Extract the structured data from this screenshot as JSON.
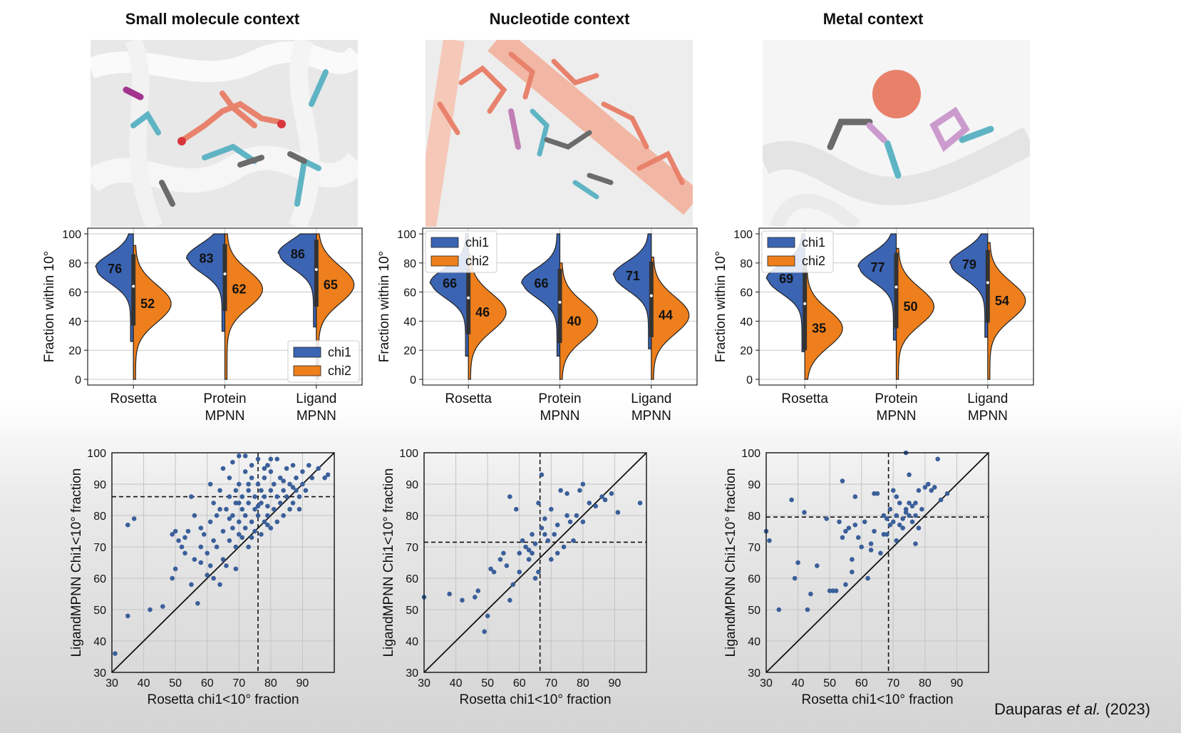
{
  "titles": [
    "Small molecule context",
    "Nucleotide context",
    "Metal context"
  ],
  "citation": {
    "author": "Dauparas ",
    "etal": "et al.",
    "year": " (2023)"
  },
  "colors": {
    "chi1": "#3b64b3",
    "chi2": "#ee7f1c",
    "scatter": "#3a5f9a"
  },
  "chart_data": [
    {
      "type": "violin",
      "context": "Small molecule context",
      "ylabel": "Fraction within 10°",
      "ylim": [
        0,
        100
      ],
      "yticks": [
        0,
        20,
        40,
        60,
        80,
        100
      ],
      "categories": [
        "Rosetta",
        "Protein\nMPNN",
        "Ligand\nMPNN"
      ],
      "series": [
        {
          "name": "chi1",
          "values": [
            76,
            83,
            86
          ]
        },
        {
          "name": "chi2",
          "values": [
            52,
            62,
            65
          ]
        }
      ],
      "legend": [
        "chi1",
        "chi2"
      ],
      "legend_position": "lower-right"
    },
    {
      "type": "violin",
      "context": "Nucleotide context",
      "ylabel": "Fraction within 10°",
      "ylim": [
        0,
        100
      ],
      "yticks": [
        0,
        20,
        40,
        60,
        80,
        100
      ],
      "categories": [
        "Rosetta",
        "Protein\nMPNN",
        "Ligand\nMPNN"
      ],
      "series": [
        {
          "name": "chi1",
          "values": [
            66,
            66,
            71
          ]
        },
        {
          "name": "chi2",
          "values": [
            46,
            40,
            44
          ]
        }
      ],
      "legend": [
        "chi1",
        "chi2"
      ],
      "legend_position": "upper-left"
    },
    {
      "type": "violin",
      "context": "Metal context",
      "ylabel": "Fraction within 10°",
      "ylim": [
        0,
        100
      ],
      "yticks": [
        0,
        20,
        40,
        60,
        80,
        100
      ],
      "categories": [
        "Rosetta",
        "Protein\nMPNN",
        "Ligand\nMPNN"
      ],
      "series": [
        {
          "name": "chi1",
          "values": [
            69,
            77,
            79
          ]
        },
        {
          "name": "chi2",
          "values": [
            35,
            50,
            54
          ]
        }
      ],
      "legend": [
        "chi1",
        "chi2"
      ],
      "legend_position": "upper-left"
    },
    {
      "type": "scatter",
      "context": "Small molecule context",
      "xlabel": "Rosetta chi1<10° fraction",
      "ylabel": "LigandMPNN Chi1<10° fraction",
      "xlim": [
        30,
        100
      ],
      "ylim": [
        30,
        100
      ],
      "xticks": [
        30,
        40,
        50,
        60,
        70,
        80,
        90
      ],
      "yticks": [
        30,
        40,
        50,
        60,
        70,
        80,
        90,
        100
      ],
      "hline": 86,
      "vline": 76,
      "points": [
        [
          31,
          36
        ],
        [
          35,
          48
        ],
        [
          35,
          77
        ],
        [
          37,
          79
        ],
        [
          42,
          50
        ],
        [
          46,
          51
        ],
        [
          49,
          74
        ],
        [
          49,
          60
        ],
        [
          50,
          75
        ],
        [
          50,
          63
        ],
        [
          51,
          72
        ],
        [
          52,
          70
        ],
        [
          53,
          68
        ],
        [
          54,
          75
        ],
        [
          55,
          58
        ],
        [
          55,
          86
        ],
        [
          56,
          80
        ],
        [
          57,
          52
        ],
        [
          58,
          65
        ],
        [
          58,
          70
        ],
        [
          59,
          74
        ],
        [
          60,
          61
        ],
        [
          60,
          68
        ],
        [
          61,
          90
        ],
        [
          61,
          78
        ],
        [
          62,
          60
        ],
        [
          62,
          72
        ],
        [
          62,
          84
        ],
        [
          63,
          70
        ],
        [
          63,
          80
        ],
        [
          64,
          58
        ],
        [
          64,
          88
        ],
        [
          65,
          66
        ],
        [
          65,
          75
        ],
        [
          65,
          95
        ],
        [
          66,
          82
        ],
        [
          67,
          72
        ],
        [
          67,
          86
        ],
        [
          67,
          92
        ],
        [
          68,
          76
        ],
        [
          68,
          80
        ],
        [
          68,
          97
        ],
        [
          69,
          70
        ],
        [
          69,
          84
        ],
        [
          69,
          88
        ],
        [
          70,
          74
        ],
        [
          70,
          78
        ],
        [
          70,
          90
        ],
        [
          70,
          99
        ],
        [
          71,
          82
        ],
        [
          71,
          86
        ],
        [
          72,
          76
        ],
        [
          72,
          80
        ],
        [
          72,
          94
        ],
        [
          73,
          70
        ],
        [
          73,
          88
        ],
        [
          73,
          84
        ],
        [
          74,
          78
        ],
        [
          74,
          92
        ],
        [
          74,
          96
        ],
        [
          75,
          75
        ],
        [
          75,
          86
        ],
        [
          75,
          82
        ],
        [
          76,
          80
        ],
        [
          76,
          90
        ],
        [
          76,
          98
        ],
        [
          77,
          74
        ],
        [
          77,
          84
        ],
        [
          77,
          88
        ],
        [
          78,
          78
        ],
        [
          78,
          86
        ],
        [
          78,
          92
        ],
        [
          79,
          80
        ],
        [
          79,
          96
        ],
        [
          79,
          83
        ],
        [
          80,
          76
        ],
        [
          80,
          88
        ],
        [
          80,
          94
        ],
        [
          81,
          82
        ],
        [
          81,
          90
        ],
        [
          82,
          78
        ],
        [
          82,
          86
        ],
        [
          82,
          98
        ],
        [
          83,
          84
        ],
        [
          83,
          92
        ],
        [
          84,
          80
        ],
        [
          84,
          88
        ],
        [
          85,
          86
        ],
        [
          85,
          95
        ],
        [
          86,
          82
        ],
        [
          86,
          90
        ],
        [
          87,
          84
        ],
        [
          87,
          96
        ],
        [
          88,
          88
        ],
        [
          88,
          92
        ],
        [
          89,
          86
        ],
        [
          89,
          82
        ],
        [
          90,
          90
        ],
        [
          90,
          94
        ],
        [
          91,
          88
        ],
        [
          92,
          96
        ],
        [
          93,
          92
        ],
        [
          95,
          95
        ],
        [
          97,
          92
        ],
        [
          98,
          93
        ],
        [
          66,
          64
        ],
        [
          69,
          63
        ],
        [
          71,
          73
        ],
        [
          74,
          73
        ],
        [
          76,
          83
        ],
        [
          79,
          77
        ],
        [
          84,
          91
        ],
        [
          87,
          89
        ],
        [
          73,
          90
        ],
        [
          67,
          79
        ],
        [
          80,
          98
        ],
        [
          78,
          95
        ],
        [
          72,
          99
        ],
        [
          70,
          84
        ],
        [
          64,
          82
        ],
        [
          58,
          76
        ],
        [
          53,
          73
        ],
        [
          56,
          66
        ],
        [
          61,
          64
        ]
      ]
    },
    {
      "type": "scatter",
      "context": "Nucleotide context",
      "xlabel": "Rosetta chi1<10° fraction",
      "ylabel": "LigandMPNN Chi1<10° fraction",
      "xlim": [
        30,
        100
      ],
      "ylim": [
        30,
        100
      ],
      "xticks": [
        30,
        40,
        50,
        60,
        70,
        80,
        90
      ],
      "yticks": [
        30,
        40,
        50,
        60,
        70,
        80,
        90,
        100
      ],
      "hline": 71.5,
      "vline": 66.5,
      "points": [
        [
          30,
          54
        ],
        [
          38,
          55
        ],
        [
          42,
          53
        ],
        [
          46,
          54
        ],
        [
          47,
          56
        ],
        [
          49,
          43
        ],
        [
          50,
          48
        ],
        [
          51,
          63
        ],
        [
          52,
          62
        ],
        [
          54,
          66
        ],
        [
          55,
          68
        ],
        [
          56,
          64
        ],
        [
          57,
          53
        ],
        [
          57,
          86
        ],
        [
          58,
          58
        ],
        [
          59,
          82
        ],
        [
          60,
          62
        ],
        [
          60,
          68
        ],
        [
          61,
          72
        ],
        [
          62,
          70
        ],
        [
          63,
          66
        ],
        [
          63,
          69
        ],
        [
          64,
          68
        ],
        [
          64,
          74
        ],
        [
          65,
          71
        ],
        [
          65,
          60
        ],
        [
          66,
          62
        ],
        [
          66,
          84
        ],
        [
          67,
          93
        ],
        [
          68,
          74
        ],
        [
          68,
          79
        ],
        [
          69,
          72
        ],
        [
          70,
          66
        ],
        [
          70,
          82
        ],
        [
          71,
          74
        ],
        [
          72,
          68
        ],
        [
          73,
          88
        ],
        [
          74,
          70
        ],
        [
          75,
          87
        ],
        [
          76,
          78
        ],
        [
          77,
          72
        ],
        [
          78,
          80
        ],
        [
          79,
          88
        ],
        [
          80,
          90
        ],
        [
          80,
          78
        ],
        [
          82,
          84
        ],
        [
          84,
          83
        ],
        [
          86,
          86
        ],
        [
          87,
          85
        ],
        [
          89,
          87
        ],
        [
          91,
          81
        ],
        [
          98,
          84
        ],
        [
          72,
          77
        ],
        [
          75,
          80
        ],
        [
          67,
          76
        ]
      ]
    },
    {
      "type": "scatter",
      "context": "Metal context",
      "xlabel": "Rosetta chi1<10° fraction",
      "ylabel": "LigandMPNN Chi1<10° fraction",
      "xlim": [
        30,
        100
      ],
      "ylim": [
        30,
        100
      ],
      "xticks": [
        30,
        40,
        50,
        60,
        70,
        80,
        90
      ],
      "yticks": [
        30,
        40,
        50,
        60,
        70,
        80,
        90,
        100
      ],
      "hline": 79.5,
      "vline": 68.5,
      "points": [
        [
          30,
          75
        ],
        [
          31,
          72
        ],
        [
          34,
          50
        ],
        [
          38,
          85
        ],
        [
          39,
          60
        ],
        [
          40,
          65
        ],
        [
          42,
          81
        ],
        [
          43,
          50
        ],
        [
          44,
          55
        ],
        [
          46,
          64
        ],
        [
          49,
          79
        ],
        [
          50,
          56
        ],
        [
          51,
          56
        ],
        [
          52,
          56
        ],
        [
          53,
          78
        ],
        [
          54,
          73
        ],
        [
          54,
          91
        ],
        [
          55,
          58
        ],
        [
          55,
          75
        ],
        [
          56,
          76
        ],
        [
          57,
          66
        ],
        [
          58,
          77
        ],
        [
          58,
          86
        ],
        [
          59,
          73
        ],
        [
          60,
          70
        ],
        [
          61,
          78
        ],
        [
          62,
          60
        ],
        [
          63,
          69
        ],
        [
          64,
          75
        ],
        [
          64,
          87
        ],
        [
          65,
          87
        ],
        [
          66,
          68
        ],
        [
          67,
          74
        ],
        [
          68,
          79
        ],
        [
          68,
          74
        ],
        [
          69,
          77
        ],
        [
          69,
          82
        ],
        [
          70,
          78
        ],
        [
          70,
          88
        ],
        [
          71,
          80
        ],
        [
          71,
          86
        ],
        [
          72,
          77
        ],
        [
          72,
          84
        ],
        [
          73,
          76
        ],
        [
          73,
          79
        ],
        [
          74,
          81
        ],
        [
          74,
          82
        ],
        [
          75,
          80
        ],
        [
          75,
          84
        ],
        [
          75,
          93
        ],
        [
          76,
          78
        ],
        [
          76,
          83
        ],
        [
          77,
          80
        ],
        [
          77,
          84
        ],
        [
          78,
          76
        ],
        [
          78,
          88
        ],
        [
          79,
          82
        ],
        [
          80,
          89
        ],
        [
          81,
          90
        ],
        [
          82,
          88
        ],
        [
          83,
          89
        ],
        [
          84,
          98
        ],
        [
          85,
          85
        ],
        [
          87,
          87
        ],
        [
          74,
          100
        ],
        [
          77,
          71
        ],
        [
          71,
          72
        ],
        [
          67,
          80
        ],
        [
          63,
          71
        ],
        [
          57,
          62
        ]
      ]
    }
  ]
}
